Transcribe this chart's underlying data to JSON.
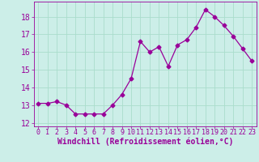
{
  "x": [
    0,
    1,
    2,
    3,
    4,
    5,
    6,
    7,
    8,
    9,
    10,
    11,
    12,
    13,
    14,
    15,
    16,
    17,
    18,
    19,
    20,
    21,
    22,
    23
  ],
  "y": [
    13.1,
    13.1,
    13.2,
    13.0,
    12.5,
    12.5,
    12.5,
    12.5,
    13.0,
    13.6,
    14.5,
    16.6,
    16.0,
    16.3,
    15.2,
    16.4,
    16.7,
    17.4,
    18.4,
    18.0,
    17.5,
    16.9,
    16.2,
    15.5
  ],
  "line_color": "#990099",
  "marker": "D",
  "marker_size": 2.5,
  "xlabel": "Windchill (Refroidissement éolien,°C)",
  "xlim": [
    -0.5,
    23.5
  ],
  "ylim": [
    11.8,
    18.85
  ],
  "yticks": [
    12,
    13,
    14,
    15,
    16,
    17,
    18
  ],
  "xticks": [
    0,
    1,
    2,
    3,
    4,
    5,
    6,
    7,
    8,
    9,
    10,
    11,
    12,
    13,
    14,
    15,
    16,
    17,
    18,
    19,
    20,
    21,
    22,
    23
  ],
  "bg_color": "#cceee8",
  "grid_color": "#aaddcc",
  "tick_color": "#990099",
  "label_color": "#990099",
  "font_size_x": 6,
  "font_size_y": 7,
  "font_size_xlabel": 7
}
